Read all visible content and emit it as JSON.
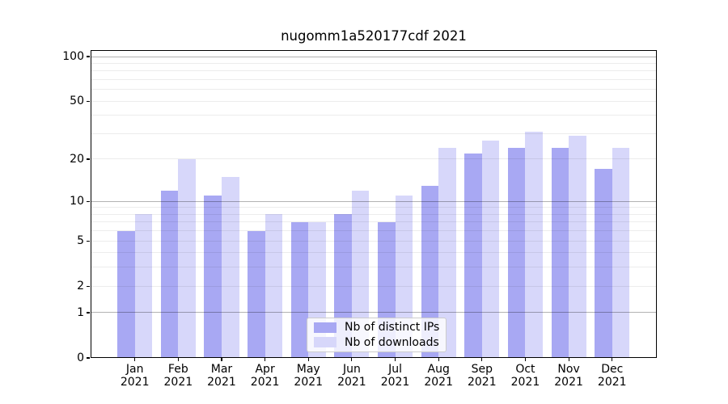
{
  "chart_data": {
    "type": "bar",
    "title": "nugomm1a520177cdf 2021",
    "scale": "log1p",
    "categories": [
      "Jan",
      "Feb",
      "Mar",
      "Apr",
      "May",
      "Jun",
      "Jul",
      "Aug",
      "Sep",
      "Oct",
      "Nov",
      "Dec"
    ],
    "year_label": "2021",
    "series": [
      {
        "name": "Nb of distinct IPs",
        "color": "#a8a8f3",
        "values": [
          6,
          12,
          11,
          6,
          7,
          8,
          7,
          13,
          22,
          24,
          24,
          17
        ]
      },
      {
        "name": "Nb of downloads",
        "color": "#d7d7fa",
        "values": [
          8,
          20,
          15,
          8,
          7,
          12,
          11,
          24,
          27,
          31,
          29,
          24
        ]
      }
    ],
    "ylim": [
      0,
      110
    ],
    "y_ticks": [
      0,
      1,
      2,
      5,
      10,
      20,
      50,
      100
    ],
    "y_major_gridlines": [
      1,
      10,
      100
    ],
    "y_minor_gridlines": [
      2,
      3,
      4,
      5,
      6,
      7,
      8,
      9,
      20,
      30,
      40,
      50,
      60,
      70,
      80,
      90
    ],
    "grid": true,
    "legend_position": "lower center"
  },
  "colors": {
    "spine": "#000000",
    "major_grid": "rgba(0,0,0,0.30)",
    "minor_grid": "rgba(0,0,0,0.075)",
    "legend_border": "#cccccc",
    "legend_background": "rgba(255,255,255,0.8)",
    "text": "#000000"
  }
}
